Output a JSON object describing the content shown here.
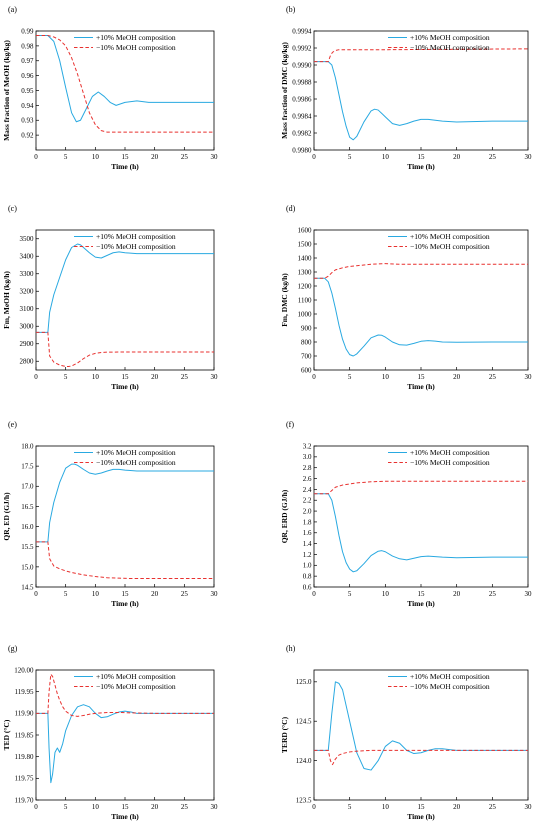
{
  "colors": {
    "plus": "#29a9e1",
    "minus": "#e8312f"
  },
  "legend": {
    "plus": "+10% MeOH composition",
    "minus": "−10% MeOH composition"
  },
  "chart_data": [
    {
      "panel": "(a)",
      "type": "line",
      "xlabel": "Time (h)",
      "ylabel": "Mass fraction of MeOH (kg/kg)",
      "xlim": [
        0,
        30
      ],
      "ylim": [
        0.91,
        0.99
      ],
      "xticks": [
        0,
        5,
        10,
        15,
        20,
        25,
        30
      ],
      "yticks": [
        0.92,
        0.93,
        0.94,
        0.95,
        0.96,
        0.97,
        0.98,
        0.99
      ],
      "ytick_labels": [
        "0.92",
        "0.93",
        "0.94",
        "0.95",
        "0.96",
        "0.97",
        "0.98",
        "0.99"
      ],
      "legend_position": "top-right",
      "series": [
        {
          "name": "+10% MeOH composition",
          "style": "solid",
          "x": [
            0,
            2,
            3,
            4,
            5,
            6,
            6.8,
            7.5,
            8.5,
            9.5,
            10.5,
            11.5,
            12.5,
            13.5,
            15,
            17,
            19,
            22,
            25,
            30
          ],
          "y": [
            0.987,
            0.987,
            0.983,
            0.97,
            0.952,
            0.935,
            0.929,
            0.93,
            0.938,
            0.946,
            0.949,
            0.946,
            0.942,
            0.94,
            0.942,
            0.943,
            0.942,
            0.942,
            0.942,
            0.942
          ]
        },
        {
          "name": "−10% MeOH composition",
          "style": "dashed",
          "x": [
            0,
            2,
            3,
            4,
            5,
            6,
            7,
            8,
            9,
            10,
            11,
            12,
            14,
            30
          ],
          "y": [
            0.987,
            0.987,
            0.986,
            0.984,
            0.98,
            0.972,
            0.961,
            0.948,
            0.935,
            0.927,
            0.923,
            0.922,
            0.922,
            0.922
          ]
        }
      ]
    },
    {
      "panel": "(b)",
      "type": "line",
      "xlabel": "Time (h)",
      "ylabel": "Mass fraction of DMC (kg/kg)",
      "xlim": [
        0,
        30
      ],
      "ylim": [
        0.998,
        0.9994
      ],
      "xticks": [
        0,
        5,
        10,
        15,
        20,
        25,
        30
      ],
      "yticks": [
        0.998,
        0.9982,
        0.9984,
        0.9986,
        0.9988,
        0.999,
        0.9992,
        0.9994
      ],
      "ytick_labels": [
        "0.9980",
        "0.9982",
        "0.9984",
        "0.9986",
        "0.9988",
        "0.9990",
        "0.9992",
        "0.9994"
      ],
      "legend_position": "top-right",
      "series": [
        {
          "name": "+10% MeOH composition",
          "style": "solid",
          "x": [
            0,
            2,
            2.5,
            3,
            3.5,
            4,
            4.5,
            5,
            5.5,
            6,
            7,
            8,
            8.5,
            9,
            10,
            11,
            12,
            13,
            14,
            15,
            16,
            18,
            20,
            25,
            30
          ],
          "y": [
            0.99904,
            0.99904,
            0.999,
            0.99885,
            0.99865,
            0.99845,
            0.99828,
            0.99815,
            0.99812,
            0.99816,
            0.99833,
            0.99846,
            0.99848,
            0.99847,
            0.99839,
            0.99831,
            0.99829,
            0.99831,
            0.99834,
            0.99836,
            0.99836,
            0.99834,
            0.99833,
            0.99834,
            0.99834
          ]
        },
        {
          "name": "−10% MeOH composition",
          "style": "dashed",
          "x": [
            0,
            2,
            2.3,
            2.6,
            3,
            3.5,
            4,
            5,
            10,
            30
          ],
          "y": [
            0.99904,
            0.99904,
            0.99911,
            0.99915,
            0.99917,
            0.99918,
            0.99918,
            0.99918,
            0.99918,
            0.99919
          ]
        }
      ]
    },
    {
      "panel": "(c)",
      "type": "line",
      "xlabel": "Time (h)",
      "ylabel": "Fm, MeOH (kg/h)",
      "xlim": [
        0,
        30
      ],
      "ylim": [
        2750,
        3550
      ],
      "xticks": [
        0,
        5,
        10,
        15,
        20,
        25,
        30
      ],
      "yticks": [
        2800,
        2900,
        3000,
        3100,
        3200,
        3300,
        3400,
        3500
      ],
      "ytick_labels": [
        "2800",
        "2900",
        "3000",
        "3100",
        "3200",
        "3300",
        "3400",
        "3500"
      ],
      "legend_position": "top-right",
      "series": [
        {
          "name": "+10% MeOH composition",
          "style": "solid",
          "x": [
            0,
            2,
            2.3,
            3,
            4,
            5,
            6,
            7,
            7.5,
            8,
            9,
            10,
            11,
            12,
            13,
            14,
            15,
            17,
            20,
            25,
            30
          ],
          "y": [
            2965,
            2965,
            3080,
            3180,
            3280,
            3380,
            3450,
            3470,
            3465,
            3450,
            3420,
            3395,
            3390,
            3405,
            3420,
            3425,
            3420,
            3415,
            3415,
            3415,
            3415
          ]
        },
        {
          "name": "−10% MeOH composition",
          "style": "dashed",
          "x": [
            0,
            2,
            2.3,
            3,
            4,
            5,
            5.5,
            6,
            7,
            8,
            9,
            10,
            11,
            12,
            15,
            30
          ],
          "y": [
            2965,
            2965,
            2830,
            2795,
            2778,
            2770,
            2770,
            2773,
            2790,
            2815,
            2835,
            2845,
            2850,
            2852,
            2853,
            2853
          ]
        }
      ]
    },
    {
      "panel": "(d)",
      "type": "line",
      "xlabel": "Time (h)",
      "ylabel": "Fm, DMC (kg/h)",
      "xlim": [
        0,
        30
      ],
      "ylim": [
        600,
        1600
      ],
      "xticks": [
        0,
        5,
        10,
        15,
        20,
        25,
        30
      ],
      "yticks": [
        600,
        700,
        800,
        900,
        1000,
        1100,
        1200,
        1300,
        1400,
        1500,
        1600
      ],
      "ytick_labels": [
        "600",
        "700",
        "800",
        "900",
        "1000",
        "1100",
        "1200",
        "1300",
        "1400",
        "1500",
        "1600"
      ],
      "legend_position": "top-right",
      "series": [
        {
          "name": "+10% MeOH composition",
          "style": "solid",
          "x": [
            0,
            1.5,
            2,
            2.5,
            3,
            3.5,
            4,
            4.5,
            5,
            5.5,
            6,
            7,
            8,
            9,
            9.5,
            10,
            11,
            12,
            13,
            14,
            15,
            16,
            17,
            18,
            20,
            25,
            30
          ],
          "y": [
            1255,
            1255,
            1230,
            1150,
            1040,
            920,
            820,
            750,
            710,
            700,
            715,
            770,
            830,
            850,
            848,
            835,
            800,
            780,
            778,
            790,
            805,
            810,
            806,
            800,
            798,
            800,
            800
          ]
        },
        {
          "name": "−10% MeOH composition",
          "style": "dashed",
          "x": [
            0,
            1.5,
            2,
            2.5,
            3,
            4,
            5,
            6,
            7,
            8,
            9,
            10,
            12,
            30
          ],
          "y": [
            1255,
            1255,
            1270,
            1295,
            1315,
            1330,
            1340,
            1345,
            1350,
            1355,
            1358,
            1360,
            1355,
            1355
          ]
        }
      ]
    },
    {
      "panel": "(e)",
      "type": "line",
      "xlabel": "Time (h)",
      "ylabel": "QR, ED (GJ/h)",
      "xlim": [
        0,
        30
      ],
      "ylim": [
        14.5,
        18.0
      ],
      "xticks": [
        0,
        5,
        10,
        15,
        20,
        25,
        30
      ],
      "yticks": [
        14.5,
        15.0,
        15.5,
        16.0,
        16.5,
        17.0,
        17.5,
        18.0
      ],
      "ytick_labels": [
        "14.5",
        "15.0",
        "15.5",
        "16.0",
        "16.5",
        "17.0",
        "17.5",
        "18.0"
      ],
      "legend_position": "top-right",
      "series": [
        {
          "name": "+10% MeOH composition",
          "style": "solid",
          "x": [
            0,
            2,
            2.3,
            3,
            4,
            5,
            6,
            6.5,
            7,
            8,
            9,
            10,
            11,
            12,
            13,
            14,
            15,
            17,
            20,
            25,
            30
          ],
          "y": [
            15.62,
            15.62,
            16.1,
            16.6,
            17.1,
            17.45,
            17.55,
            17.55,
            17.52,
            17.42,
            17.33,
            17.3,
            17.33,
            17.38,
            17.42,
            17.42,
            17.4,
            17.38,
            17.38,
            17.38,
            17.38
          ]
        },
        {
          "name": "−10% MeOH composition",
          "style": "dashed",
          "x": [
            0,
            2,
            2.3,
            3,
            4,
            5,
            6,
            8,
            10,
            12,
            14,
            16,
            20,
            25,
            30
          ],
          "y": [
            15.62,
            15.62,
            15.2,
            15.02,
            14.95,
            14.9,
            14.86,
            14.8,
            14.76,
            14.73,
            14.72,
            14.71,
            14.71,
            14.71,
            14.71
          ]
        }
      ]
    },
    {
      "panel": "(f)",
      "type": "line",
      "xlabel": "Time (h)",
      "ylabel": "QR, ERD (GJ/h)",
      "xlim": [
        0,
        30
      ],
      "ylim": [
        0.6,
        3.2
      ],
      "xticks": [
        0,
        5,
        10,
        15,
        20,
        25,
        30
      ],
      "yticks": [
        0.6,
        0.8,
        1.0,
        1.2,
        1.4,
        1.6,
        1.8,
        2.0,
        2.2,
        2.4,
        2.6,
        2.8,
        3.0,
        3.2
      ],
      "ytick_labels": [
        "0.6",
        "0.8",
        "1.0",
        "1.2",
        "1.4",
        "1.6",
        "1.8",
        "2.0",
        "2.2",
        "2.4",
        "2.6",
        "2.8",
        "3.0",
        "3.2"
      ],
      "legend_position": "top-right",
      "series": [
        {
          "name": "+10% MeOH composition",
          "style": "solid",
          "x": [
            0,
            2,
            2.5,
            3,
            3.5,
            4,
            4.5,
            5,
            5.5,
            6,
            7,
            8,
            9,
            9.5,
            10,
            11,
            12,
            13,
            14,
            15,
            16,
            17,
            18,
            20,
            25,
            30
          ],
          "y": [
            2.32,
            2.32,
            2.2,
            1.9,
            1.55,
            1.25,
            1.05,
            0.93,
            0.88,
            0.9,
            1.03,
            1.18,
            1.26,
            1.27,
            1.25,
            1.17,
            1.12,
            1.1,
            1.13,
            1.16,
            1.17,
            1.16,
            1.15,
            1.14,
            1.15,
            1.15
          ]
        },
        {
          "name": "−10% MeOH composition",
          "style": "dashed",
          "x": [
            0,
            2,
            2.5,
            3,
            4,
            5,
            6,
            8,
            10,
            12,
            15,
            20,
            30
          ],
          "y": [
            2.32,
            2.32,
            2.38,
            2.44,
            2.48,
            2.5,
            2.52,
            2.54,
            2.55,
            2.55,
            2.55,
            2.55,
            2.55
          ]
        }
      ]
    },
    {
      "panel": "(g)",
      "type": "line",
      "xlabel": "Time (h)",
      "ylabel": "TED (°C)",
      "xlim": [
        0,
        30
      ],
      "ylim": [
        119.7,
        120.0
      ],
      "xticks": [
        0,
        5,
        10,
        15,
        20,
        25,
        30
      ],
      "yticks": [
        119.7,
        119.75,
        119.8,
        119.85,
        119.9,
        119.95,
        120.0
      ],
      "ytick_labels": [
        "119.70",
        "119.75",
        "119.80",
        "119.85",
        "119.90",
        "119.95",
        "120.00"
      ],
      "legend_position": "top-right",
      "series": [
        {
          "name": "+10% MeOH composition",
          "style": "solid",
          "x": [
            0,
            2,
            2.2,
            2.5,
            2.8,
            3.2,
            3.6,
            4,
            4.5,
            5,
            6,
            7,
            8,
            9,
            10,
            11,
            12,
            13,
            14,
            15,
            16,
            17,
            18,
            20,
            25,
            30
          ],
          "y": [
            119.9,
            119.9,
            119.82,
            119.74,
            119.76,
            119.81,
            119.82,
            119.81,
            119.83,
            119.86,
            119.895,
            119.915,
            119.92,
            119.915,
            119.9,
            119.89,
            119.892,
            119.898,
            119.903,
            119.905,
            119.903,
            119.9,
            119.9,
            119.9,
            119.9,
            119.9
          ]
        },
        {
          "name": "−10% MeOH composition",
          "style": "dashed",
          "x": [
            0,
            2,
            2.2,
            2.5,
            2.8,
            3.2,
            3.6,
            4,
            4.5,
            5,
            6,
            7,
            8,
            9,
            10,
            12,
            14,
            16,
            20,
            30
          ],
          "y": [
            119.9,
            119.9,
            119.95,
            119.99,
            119.985,
            119.965,
            119.945,
            119.93,
            119.915,
            119.905,
            119.895,
            119.893,
            119.895,
            119.898,
            119.9,
            119.902,
            119.902,
            119.901,
            119.9,
            119.9
          ]
        }
      ]
    },
    {
      "panel": "(h)",
      "type": "line",
      "xlabel": "Time (h)",
      "ylabel": "TERD (°C)",
      "xlim": [
        0,
        30
      ],
      "ylim": [
        123.5,
        125.15
      ],
      "xticks": [
        0,
        5,
        10,
        15,
        20,
        25,
        30
      ],
      "yticks": [
        123.5,
        124.0,
        124.5,
        125.0
      ],
      "ytick_labels": [
        "123.5",
        "124.0",
        "124.5",
        "125.0"
      ],
      "legend_position": "top-right",
      "series": [
        {
          "name": "+10% MeOH composition",
          "style": "solid",
          "x": [
            0,
            2,
            2.5,
            3,
            3.5,
            4,
            5,
            6,
            7,
            8,
            9,
            10,
            11,
            12,
            13,
            14,
            15,
            16,
            17,
            18,
            19,
            20,
            25,
            30
          ],
          "y": [
            124.13,
            124.13,
            124.6,
            125.0,
            124.98,
            124.9,
            124.5,
            124.1,
            123.9,
            123.88,
            124.0,
            124.18,
            124.25,
            124.22,
            124.13,
            124.09,
            124.1,
            124.13,
            124.15,
            124.15,
            124.14,
            124.13,
            124.13,
            124.13
          ]
        },
        {
          "name": "−10% MeOH composition",
          "style": "dashed",
          "x": [
            0,
            2,
            2.3,
            2.6,
            3,
            3.5,
            4,
            5,
            6,
            8,
            10,
            15,
            20,
            30
          ],
          "y": [
            124.13,
            124.13,
            124.0,
            123.95,
            124.02,
            124.07,
            124.09,
            124.11,
            124.12,
            124.13,
            124.13,
            124.13,
            124.13,
            124.13
          ]
        }
      ]
    }
  ]
}
